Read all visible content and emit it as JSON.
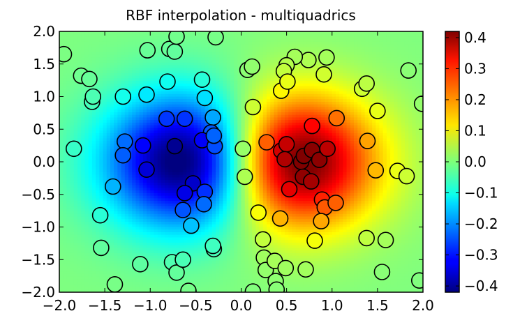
{
  "chart_data": {
    "type": "heatmap",
    "title": "RBF interpolation - multiquadrics",
    "xlabel": "",
    "ylabel": "",
    "xlim": [
      -2.0,
      2.0
    ],
    "ylim": [
      -2.0,
      2.0
    ],
    "x_ticks": [
      "−2.0",
      "−1.5",
      "−1.0",
      "−0.5",
      "0.0",
      "0.5",
      "1.0",
      "1.5",
      "2.0"
    ],
    "y_ticks": [
      "−2.0",
      "−1.5",
      "−1.0",
      "−0.5",
      "0.0",
      "0.5",
      "1.0",
      "1.5",
      "2.0"
    ],
    "colormap": "jet",
    "colorbar": {
      "vmin": -0.42,
      "vmax": 0.42,
      "ticks": [
        0.4,
        0.3,
        0.2,
        0.1,
        0.0,
        -0.1,
        -0.2,
        -0.3,
        -0.4
      ],
      "tick_labels": [
        "0.4",
        "0.3",
        "0.2",
        "0.1",
        "0.0",
        "−0.1",
        "−0.2",
        "−0.3",
        "−0.4"
      ]
    },
    "surface": {
      "function": "x * exp(-x^2 - y^2)",
      "grid_resolution": 100
    },
    "grid": false,
    "legend": "none",
    "points": [
      [
        -1.95,
        1.65
      ],
      [
        -1.76,
        1.32
      ],
      [
        -1.67,
        1.27
      ],
      [
        -1.64,
        0.92
      ],
      [
        -1.63,
        1.0
      ],
      [
        -1.84,
        0.2
      ],
      [
        -1.3,
        1.0
      ],
      [
        -1.04,
        1.03
      ],
      [
        -1.03,
        1.71
      ],
      [
        -0.79,
        1.73
      ],
      [
        -0.73,
        1.69
      ],
      [
        -0.71,
        1.92
      ],
      [
        -0.81,
        1.23
      ],
      [
        -0.28,
        1.91
      ],
      [
        -0.43,
        1.26
      ],
      [
        -0.4,
        0.98
      ],
      [
        -0.82,
        0.66
      ],
      [
        -0.62,
        0.66
      ],
      [
        -0.31,
        0.68
      ],
      [
        -0.33,
        0.45
      ],
      [
        -1.28,
        0.31
      ],
      [
        -1.08,
        0.25
      ],
      [
        -0.73,
        0.24
      ],
      [
        -0.43,
        0.33
      ],
      [
        -0.29,
        0.24
      ],
      [
        -0.3,
        0.4
      ],
      [
        -1.3,
        0.1
      ],
      [
        -1.04,
        -0.12
      ],
      [
        -1.41,
        -0.38
      ],
      [
        -0.53,
        -0.33
      ],
      [
        -0.62,
        -0.48
      ],
      [
        -0.4,
        -0.46
      ],
      [
        -0.41,
        -0.65
      ],
      [
        -0.64,
        -0.74
      ],
      [
        -0.55,
        -0.98
      ],
      [
        -1.55,
        -0.82
      ],
      [
        -1.54,
        -1.32
      ],
      [
        -1.11,
        -1.57
      ],
      [
        -0.76,
        -1.54
      ],
      [
        -0.71,
        -1.7
      ],
      [
        -0.64,
        -1.5
      ],
      [
        -0.3,
        -1.34
      ],
      [
        -0.31,
        -1.29
      ],
      [
        -1.39,
        -1.88
      ],
      [
        -0.58,
        -1.98
      ],
      [
        0.07,
        1.41
      ],
      [
        0.12,
        1.46
      ],
      [
        0.13,
        0.84
      ],
      [
        0.02,
        0.2
      ],
      [
        0.04,
        -0.23
      ],
      [
        0.28,
        0.3
      ],
      [
        0.44,
        1.09
      ],
      [
        0.44,
        0.17
      ],
      [
        0.5,
        0.27
      ],
      [
        0.66,
        0.0
      ],
      [
        0.69,
        0.09
      ],
      [
        0.78,
        0.55
      ],
      [
        0.78,
        0.18
      ],
      [
        0.86,
        0.03
      ],
      [
        0.95,
        0.2
      ],
      [
        1.05,
        0.67
      ],
      [
        0.74,
        1.56
      ],
      [
        0.94,
        1.6
      ],
      [
        0.91,
        1.34
      ],
      [
        0.59,
        1.61
      ],
      [
        0.5,
        1.48
      ],
      [
        0.47,
        1.39
      ],
      [
        0.51,
        1.23
      ],
      [
        0.48,
        0.04
      ],
      [
        0.53,
        -0.42
      ],
      [
        0.68,
        -0.23
      ],
      [
        0.77,
        -0.3
      ],
      [
        0.89,
        -0.58
      ],
      [
        0.92,
        -0.7
      ],
      [
        1.04,
        -0.63
      ],
      [
        0.88,
        -0.91
      ],
      [
        0.81,
        -1.21
      ],
      [
        0.43,
        -0.87
      ],
      [
        0.19,
        -0.78
      ],
      [
        0.24,
        -1.19
      ],
      [
        0.25,
        -1.47
      ],
      [
        0.27,
        -1.66
      ],
      [
        0.37,
        -1.52
      ],
      [
        0.38,
        -1.83
      ],
      [
        0.49,
        -1.63
      ],
      [
        0.71,
        -1.65
      ],
      [
        0.39,
        -1.96
      ],
      [
        0.13,
        -1.99
      ],
      [
        1.33,
        1.12
      ],
      [
        1.38,
        1.2
      ],
      [
        1.5,
        0.78
      ],
      [
        1.39,
        0.32
      ],
      [
        1.84,
        1.4
      ],
      [
        1.99,
        0.89
      ],
      [
        1.48,
        -0.13
      ],
      [
        1.72,
        -0.14
      ],
      [
        1.82,
        -0.22
      ],
      [
        1.38,
        -1.17
      ],
      [
        1.59,
        -1.2
      ],
      [
        1.55,
        -1.69
      ],
      [
        1.96,
        -1.82
      ]
    ]
  }
}
